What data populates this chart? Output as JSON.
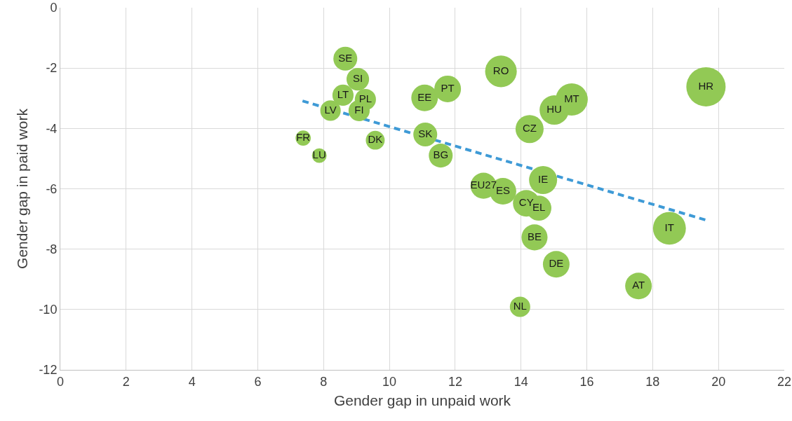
{
  "chart_data": {
    "type": "bubble",
    "xlabel": "Gender gap in unpaid work",
    "ylabel": "Gender gap in paid work",
    "xlim": [
      0,
      22
    ],
    "ylim": [
      -12,
      0
    ],
    "xticks": [
      0,
      2,
      4,
      6,
      8,
      10,
      12,
      14,
      16,
      18,
      20,
      22
    ],
    "yticks": [
      -12,
      -10,
      -8,
      -6,
      -4,
      -2,
      0
    ],
    "grid": true,
    "series": [
      {
        "name": "SE",
        "color": "#92c955",
        "x": [
          8.66
        ],
        "values": [
          -1.69
        ],
        "sizes": [
          0.37
        ]
      },
      {
        "name": "SI",
        "color": "#92c955",
        "x": [
          9.04
        ],
        "values": [
          -2.37
        ],
        "sizes": [
          0.33
        ]
      },
      {
        "name": "LT",
        "color": "#92c955",
        "x": [
          8.59
        ],
        "values": [
          -2.9
        ],
        "sizes": [
          0.29
        ]
      },
      {
        "name": "PL",
        "color": "#92c955",
        "x": [
          9.27
        ],
        "values": [
          -3.04
        ],
        "sizes": [
          0.29
        ]
      },
      {
        "name": "FI",
        "color": "#92c955",
        "x": [
          9.08
        ],
        "values": [
          -3.41
        ],
        "sizes": [
          0.29
        ]
      },
      {
        "name": "LV",
        "color": "#92c955",
        "x": [
          8.21
        ],
        "values": [
          -3.41
        ],
        "sizes": [
          0.27
        ]
      },
      {
        "name": "FR",
        "color": "#92c955",
        "x": [
          7.38
        ],
        "values": [
          -4.32
        ],
        "sizes": [
          0.15
        ]
      },
      {
        "name": "LU",
        "color": "#92c955",
        "x": [
          7.87
        ],
        "values": [
          -4.9
        ],
        "sizes": [
          0.14
        ]
      },
      {
        "name": "DK",
        "color": "#92c955",
        "x": [
          9.57
        ],
        "values": [
          -4.39
        ],
        "sizes": [
          0.23
        ]
      },
      {
        "name": "EE",
        "color": "#92c955",
        "x": [
          11.07
        ],
        "values": [
          -2.99
        ],
        "sizes": [
          0.46
        ]
      },
      {
        "name": "PT",
        "color": "#92c955",
        "x": [
          11.77
        ],
        "values": [
          -2.69
        ],
        "sizes": [
          0.46
        ]
      },
      {
        "name": "SK",
        "color": "#92c955",
        "x": [
          11.09
        ],
        "values": [
          -4.2
        ],
        "sizes": [
          0.37
        ]
      },
      {
        "name": "BG",
        "color": "#92c955",
        "x": [
          11.56
        ],
        "values": [
          -4.9
        ],
        "sizes": [
          0.37
        ]
      },
      {
        "name": "RO",
        "color": "#92c955",
        "x": [
          13.39
        ],
        "values": [
          -2.11
        ],
        "sizes": [
          0.65
        ]
      },
      {
        "name": "EU27",
        "color": "#92c955",
        "x": [
          12.86
        ],
        "values": [
          -5.9
        ],
        "sizes": [
          0.44
        ]
      },
      {
        "name": "ES",
        "color": "#92c955",
        "x": [
          13.45
        ],
        "values": [
          -6.08
        ],
        "sizes": [
          0.46
        ]
      },
      {
        "name": "CZ",
        "color": "#92c955",
        "x": [
          14.26
        ],
        "values": [
          -4.02
        ],
        "sizes": [
          0.51
        ]
      },
      {
        "name": "HU",
        "color": "#92c955",
        "x": [
          15.01
        ],
        "values": [
          -3.39
        ],
        "sizes": [
          0.56
        ]
      },
      {
        "name": "MT",
        "color": "#92c955",
        "x": [
          15.54
        ],
        "values": [
          -3.04
        ],
        "sizes": [
          0.67
        ]
      },
      {
        "name": "IE",
        "color": "#92c955",
        "x": [
          14.67
        ],
        "values": [
          -5.71
        ],
        "sizes": [
          0.51
        ]
      },
      {
        "name": "CY",
        "color": "#92c955",
        "x": [
          14.16
        ],
        "values": [
          -6.48
        ],
        "sizes": [
          0.46
        ]
      },
      {
        "name": "EL",
        "color": "#92c955",
        "x": [
          14.54
        ],
        "values": [
          -6.64
        ],
        "sizes": [
          0.41
        ]
      },
      {
        "name": "BE",
        "color": "#92c955",
        "x": [
          14.41
        ],
        "values": [
          -7.61
        ],
        "sizes": [
          0.44
        ]
      },
      {
        "name": "DE",
        "color": "#92c955",
        "x": [
          15.07
        ],
        "values": [
          -8.5
        ],
        "sizes": [
          0.46
        ]
      },
      {
        "name": "NL",
        "color": "#92c955",
        "x": [
          13.97
        ],
        "values": [
          -9.91
        ],
        "sizes": [
          0.27
        ]
      },
      {
        "name": "HR",
        "color": "#92c955",
        "x": [
          19.62
        ],
        "values": [
          -2.62
        ],
        "sizes": [
          1
        ]
      },
      {
        "name": "IT",
        "color": "#92c955",
        "x": [
          18.51
        ],
        "values": [
          -7.31
        ],
        "sizes": [
          0.7
        ]
      },
      {
        "name": "AT",
        "color": "#92c955",
        "x": [
          17.57
        ],
        "values": [
          -9.22
        ],
        "sizes": [
          0.46
        ]
      },
      {
        "type": "line",
        "color": "#3e9ad6",
        "line_style": "dashed",
        "marker": "none",
        "x": [
          7.36,
          19.6
        ],
        "values": [
          -3.09,
          -7.03
        ]
      }
    ]
  }
}
